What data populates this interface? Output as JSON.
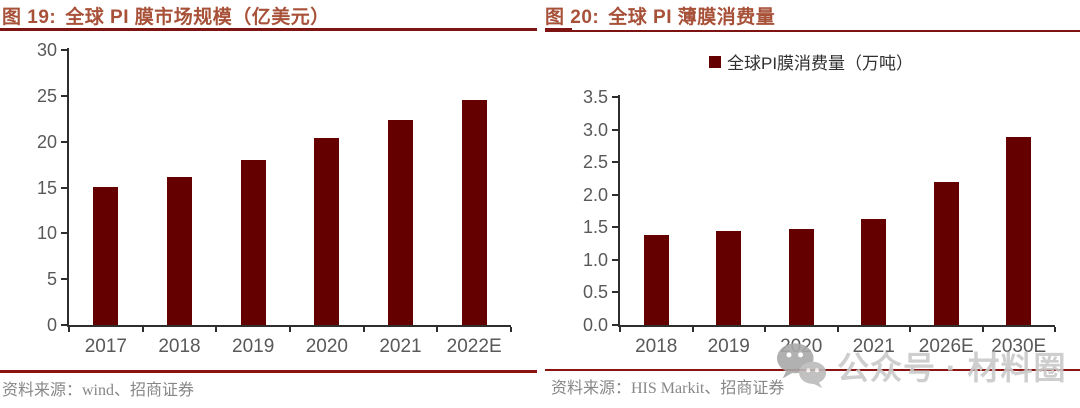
{
  "style": {
    "background": "#FFFFFF",
    "title_color": "#A85139",
    "title_rule_color": "#7E1412",
    "source_rule_color": "#8B1412",
    "bar_color": "#640000",
    "axis_color": "#2E2E2E",
    "tick_label_color": "#595959",
    "source_text_color": "#878787",
    "watermark_color": "#C9C9C9"
  },
  "watermark": {
    "icon": "wechat-icon",
    "text": "公众号 · 材料圈"
  },
  "chart_data": [
    {
      "type": "bar",
      "fig_label": "图 19:",
      "title": "全球 PI 膜市场规模（亿美元）",
      "categories": [
        "2017",
        "2018",
        "2019",
        "2020",
        "2021",
        "2022E"
      ],
      "values": [
        15.1,
        16.2,
        18.0,
        20.4,
        22.4,
        24.5
      ],
      "ylim": [
        0,
        30
      ],
      "yticks": [
        "0",
        "5",
        "10",
        "15",
        "20",
        "25",
        "30"
      ],
      "xlabel": "",
      "ylabel": "",
      "grid": false,
      "legend": null,
      "bar_color": "#640000",
      "source": "资料来源：wind、招商证券"
    },
    {
      "type": "bar",
      "fig_label": "图 20:",
      "title": "全球 PI 薄膜消费量",
      "categories": [
        "2018",
        "2019",
        "2020",
        "2021",
        "2026E",
        "2030E"
      ],
      "values": [
        1.38,
        1.45,
        1.48,
        1.62,
        2.2,
        2.88
      ],
      "ylim": [
        0,
        3.5
      ],
      "yticks": [
        "0.0",
        "0.5",
        "1.0",
        "1.5",
        "2.0",
        "2.5",
        "3.0",
        "3.5"
      ],
      "xlabel": "",
      "ylabel": "",
      "grid": false,
      "legend": "全球PI膜消费量（万吨）",
      "legend_position": "top",
      "bar_color": "#640000",
      "source": "资料来源：HIS Markit、招商证券"
    }
  ]
}
